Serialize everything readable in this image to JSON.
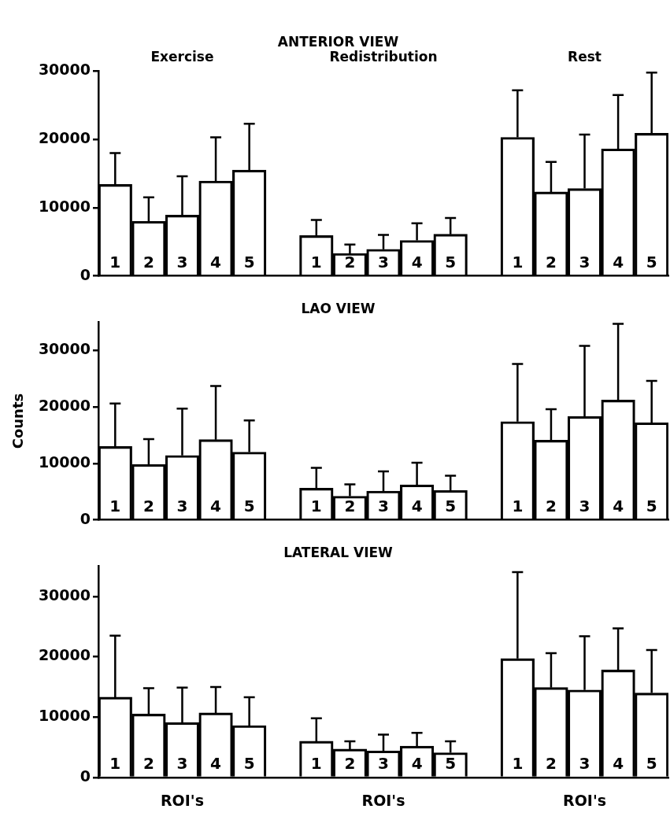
{
  "chart_data": [
    {
      "type": "bar",
      "title": "ANTERIOR VIEW",
      "annotations": [
        "Exercise",
        "Redistribution",
        "Rest"
      ],
      "categories": [
        "1",
        "2",
        "3",
        "4",
        "5",
        null,
        "1",
        "2",
        "3",
        "4",
        "5",
        null,
        "1",
        "2",
        "3",
        "4",
        "5"
      ],
      "values": [
        13400,
        8000,
        8900,
        13900,
        15500,
        null,
        5900,
        3300,
        3900,
        5200,
        6100,
        null,
        20300,
        12300,
        12800,
        18600,
        20900
      ],
      "errors": [
        [
          13400,
          18000
        ],
        [
          8000,
          11500
        ],
        [
          8900,
          14600
        ],
        [
          13900,
          20300
        ],
        [
          15500,
          22300
        ],
        null,
        [
          5900,
          8200
        ],
        [
          3300,
          4600
        ],
        [
          3900,
          6000
        ],
        [
          5200,
          7700
        ],
        [
          6100,
          8500
        ],
        null,
        [
          20300,
          27200
        ],
        [
          12300,
          16700
        ],
        [
          12800,
          20700
        ],
        [
          18600,
          26500
        ],
        [
          20900,
          29800
        ]
      ],
      "color": "#000000",
      "ylim": [
        0,
        30000
      ],
      "yticks": [
        0,
        10000,
        20000,
        30000
      ]
    },
    {
      "type": "bar",
      "title": "LAO VIEW",
      "ylabel": "Counts",
      "categories": [
        "1",
        "2",
        "3",
        "4",
        "5",
        null,
        "1",
        "2",
        "3",
        "4",
        "5",
        null,
        "1",
        "2",
        "3",
        "4",
        "5"
      ],
      "values": [
        13000,
        9800,
        11400,
        14200,
        12000,
        null,
        5600,
        4200,
        5100,
        6200,
        5200,
        null,
        17400,
        14100,
        18300,
        21200,
        17200
      ],
      "errors": [
        [
          13000,
          20600
        ],
        [
          9800,
          14300
        ],
        [
          11400,
          19700
        ],
        [
          14200,
          23700
        ],
        [
          12000,
          17600
        ],
        null,
        [
          5600,
          9200
        ],
        [
          4200,
          6300
        ],
        [
          5100,
          8600
        ],
        [
          6200,
          10100
        ],
        [
          5200,
          7800
        ],
        null,
        [
          17400,
          27600
        ],
        [
          14100,
          19600
        ],
        [
          18300,
          30800
        ],
        [
          21200,
          34700
        ],
        [
          17200,
          24600
        ]
      ],
      "color": "#000000",
      "ylim": [
        0,
        35000
      ],
      "yticks": [
        0,
        10000,
        20000,
        30000
      ]
    },
    {
      "type": "bar",
      "title": "LATERAL VIEW",
      "xlabel": "ROI's",
      "categories": [
        "1",
        "2",
        "3",
        "4",
        "5",
        null,
        "1",
        "2",
        "3",
        "4",
        "5",
        null,
        "1",
        "2",
        "3",
        "4",
        "5"
      ],
      "values": [
        13300,
        10500,
        9100,
        10700,
        8600,
        null,
        6000,
        4700,
        4400,
        5200,
        4100,
        null,
        19700,
        14900,
        14500,
        17800,
        14000
      ],
      "errors": [
        [
          13300,
          23500
        ],
        [
          10500,
          14800
        ],
        [
          9100,
          14900
        ],
        [
          10700,
          15000
        ],
        [
          8600,
          13300
        ],
        null,
        [
          6000,
          9800
        ],
        [
          4700,
          6000
        ],
        [
          4400,
          7100
        ],
        [
          5200,
          7400
        ],
        [
          4100,
          6000
        ],
        null,
        [
          19700,
          34000
        ],
        [
          14900,
          20600
        ],
        [
          14500,
          23400
        ],
        [
          17800,
          24700
        ],
        [
          14000,
          21100
        ]
      ],
      "color": "#000000",
      "ylim": [
        0,
        35000
      ],
      "yticks": [
        0,
        10000,
        20000,
        30000
      ]
    }
  ]
}
